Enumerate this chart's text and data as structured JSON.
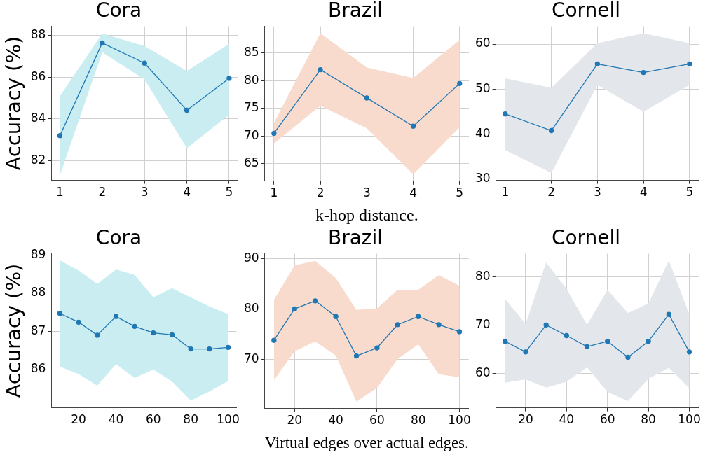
{
  "chart_data": [
    {
      "type": "line",
      "title": "Cora",
      "ylabel": "Accuracy (%)",
      "x": [
        1,
        2,
        3,
        4,
        5
      ],
      "xlim": [
        0.8,
        5.2
      ],
      "xticks": [
        1,
        2,
        3,
        4,
        5
      ],
      "ylim": [
        81.05,
        88.45
      ],
      "yticks": [
        82,
        84,
        86,
        88
      ],
      "grid": true,
      "legend": false,
      "marker": "circle",
      "line_style": "solid",
      "series": [
        {
          "color": "#1f77b4",
          "values": [
            83.2,
            87.65,
            86.68,
            84.42,
            85.95
          ],
          "lower": [
            81.3,
            87.2,
            85.9,
            82.6,
            84.2
          ],
          "upper": [
            85.1,
            88.1,
            87.5,
            86.3,
            87.6
          ]
        }
      ]
    },
    {
      "type": "line",
      "title": "Brazil",
      "xlabel": "k-hop distance.",
      "x": [
        1,
        2,
        3,
        4,
        5
      ],
      "xlim": [
        0.8,
        5.2
      ],
      "xticks": [
        1,
        2,
        3,
        4,
        5
      ],
      "ylim": [
        61.85,
        89.85
      ],
      "yticks": [
        65,
        70,
        75,
        80,
        85
      ],
      "grid": true,
      "legend": false,
      "marker": "circle",
      "line_style": "solid",
      "series": [
        {
          "color": "#1f77b4",
          "values": [
            70.5,
            82,
            76.9,
            71.8,
            79.5
          ],
          "lower": [
            68.7,
            75.5,
            71.4,
            63.1,
            71.6
          ],
          "upper": [
            72.4,
            88.6,
            82.4,
            80.5,
            87.4
          ]
        }
      ]
    },
    {
      "type": "line",
      "title": "Cornell",
      "x": [
        1,
        2,
        3,
        4,
        5
      ],
      "xlim": [
        0.8,
        5.2
      ],
      "xticks": [
        1,
        2,
        3,
        4,
        5
      ],
      "ylim": [
        29.75,
        63.95
      ],
      "yticks": [
        30,
        40,
        50,
        60
      ],
      "grid": true,
      "legend": false,
      "marker": "circle",
      "line_style": "solid",
      "series": [
        {
          "color": "#1f77b4",
          "values": [
            44.5,
            40.8,
            55.6,
            53.7,
            55.6
          ],
          "lower": [
            36.5,
            31.4,
            50.9,
            45,
            50.9
          ],
          "upper": [
            52.4,
            50.3,
            60.2,
            62.4,
            60.2
          ]
        }
      ]
    },
    {
      "type": "line",
      "title": "Cora",
      "ylabel": "Accuracy (%)",
      "x": [
        10,
        20,
        30,
        40,
        50,
        60,
        70,
        80,
        90,
        100
      ],
      "xlim": [
        5.5,
        104.5
      ],
      "xticks": [
        20,
        40,
        60,
        80,
        100
      ],
      "ylim": [
        85.0,
        89.03
      ],
      "yticks": [
        86,
        87,
        88,
        89
      ],
      "grid": true,
      "legend": false,
      "marker": "circle",
      "line_style": "solid",
      "series": [
        {
          "color": "#1f77b4",
          "values": [
            87.47,
            87.24,
            86.9,
            87.39,
            87.13,
            86.96,
            86.91,
            86.54,
            86.54,
            86.58
          ],
          "lower": [
            86.08,
            85.88,
            85.58,
            86.14,
            85.78,
            86.0,
            85.69,
            85.19,
            85.43,
            85.7
          ],
          "upper": [
            88.86,
            88.59,
            88.24,
            88.62,
            88.48,
            87.89,
            88.13,
            87.89,
            87.65,
            87.45
          ]
        }
      ]
    },
    {
      "type": "line",
      "title": "Brazil",
      "xlabel": "Virtual edges over actual edges.",
      "x": [
        10,
        20,
        30,
        40,
        50,
        60,
        70,
        80,
        90,
        100
      ],
      "xlim": [
        5.5,
        104.5
      ],
      "xticks": [
        20,
        40,
        60,
        80,
        100
      ],
      "ylim": [
        60.3,
        90.9
      ],
      "yticks": [
        70,
        80,
        90
      ],
      "grid": true,
      "legend": false,
      "marker": "circle",
      "line_style": "solid",
      "series": [
        {
          "color": "#1f77b4",
          "values": [
            73.8,
            80,
            81.6,
            78.5,
            70.7,
            72.3,
            76.9,
            78.5,
            76.9,
            75.5
          ],
          "lower": [
            65.9,
            71.6,
            73.6,
            70.8,
            61.7,
            64.4,
            70.1,
            73.0,
            67.1,
            66.5
          ],
          "upper": [
            81.8,
            88.6,
            89.5,
            86.1,
            79.8,
            80.1,
            83.8,
            83.8,
            86.7,
            84.6
          ]
        }
      ]
    },
    {
      "type": "line",
      "title": "Cornell",
      "x": [
        10,
        20,
        30,
        40,
        50,
        60,
        70,
        80,
        90,
        100
      ],
      "xlim": [
        5.5,
        104.5
      ],
      "xticks": [
        20,
        40,
        60,
        80,
        100
      ],
      "ylim": [
        52.8,
        84.8
      ],
      "yticks": [
        60,
        70,
        80
      ],
      "grid": true,
      "legend": false,
      "marker": "circle",
      "line_style": "solid",
      "series": [
        {
          "color": "#1f77b4",
          "values": [
            66.6,
            64.4,
            70.0,
            67.8,
            65.5,
            66.6,
            63.3,
            66.6,
            72.2,
            64.4
          ],
          "lower": [
            58.0,
            58.7,
            57.0,
            58.2,
            61.2,
            56.1,
            54.2,
            58.8,
            61.1,
            56.9
          ],
          "upper": [
            75.4,
            70.2,
            83.0,
            77.5,
            70.0,
            77.3,
            72.5,
            74.5,
            83.4,
            72.2
          ]
        }
      ]
    }
  ]
}
